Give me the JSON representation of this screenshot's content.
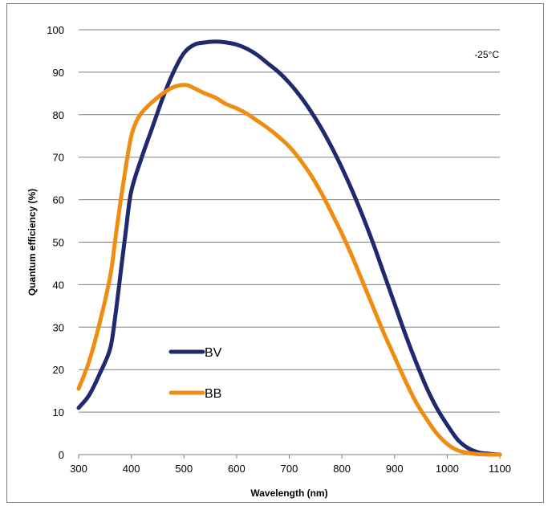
{
  "chart_data": {
    "type": "line",
    "title": "",
    "xlabel": "Wavelength (nm)",
    "ylabel": "Quantum efficiency (%)",
    "xlim": [
      300,
      1100
    ],
    "ylim": [
      0,
      100
    ],
    "xticks": [
      300,
      400,
      500,
      600,
      700,
      800,
      900,
      1000,
      1100
    ],
    "yticks": [
      0,
      10,
      20,
      30,
      40,
      50,
      60,
      70,
      80,
      90,
      100
    ],
    "grid": "horizontal",
    "annotation": "-25°C",
    "legend_position": "bottom-left",
    "series": [
      {
        "name": "BV",
        "color": "#1f2a6e",
        "x": [
          300,
          320,
          340,
          360,
          370,
          380,
          390,
          400,
          420,
          440,
          460,
          480,
          500,
          520,
          540,
          560,
          580,
          600,
          620,
          640,
          660,
          680,
          700,
          720,
          740,
          760,
          780,
          800,
          820,
          840,
          860,
          880,
          900,
          920,
          940,
          960,
          980,
          1000,
          1020,
          1040,
          1060,
          1080,
          1100
        ],
        "y": [
          11,
          14,
          19,
          25,
          33,
          43,
          53,
          62,
          70,
          77,
          84,
          90,
          94.5,
          96.5,
          97,
          97.2,
          97,
          96.5,
          95.5,
          94,
          92,
          90,
          87.5,
          84.5,
          81,
          77,
          72.5,
          67.5,
          62,
          56,
          49.5,
          42.5,
          35.5,
          28.5,
          22,
          16,
          11,
          7,
          3.5,
          1.5,
          0.5,
          0.2,
          0
        ]
      },
      {
        "name": "BB",
        "color": "#ef8d12",
        "x": [
          300,
          320,
          340,
          360,
          370,
          380,
          390,
          400,
          410,
          420,
          440,
          460,
          480,
          500,
          510,
          520,
          540,
          560,
          580,
          600,
          620,
          640,
          660,
          680,
          700,
          720,
          740,
          760,
          780,
          800,
          820,
          840,
          860,
          880,
          900,
          920,
          940,
          960,
          980,
          1000,
          1020,
          1040,
          1060,
          1080,
          1100
        ],
        "y": [
          15.5,
          22,
          31,
          42,
          51,
          60,
          68,
          75,
          78.5,
          80.5,
          83,
          85,
          86.5,
          87,
          86.8,
          86.2,
          85,
          84,
          82.5,
          81.5,
          80.2,
          78.5,
          76.8,
          74.8,
          72.5,
          69.5,
          66,
          61.8,
          57,
          52,
          46.5,
          40.5,
          34.5,
          28.5,
          23,
          17.5,
          12.5,
          8.5,
          5,
          2.5,
          1,
          0.4,
          0.1,
          0,
          0
        ]
      }
    ]
  }
}
